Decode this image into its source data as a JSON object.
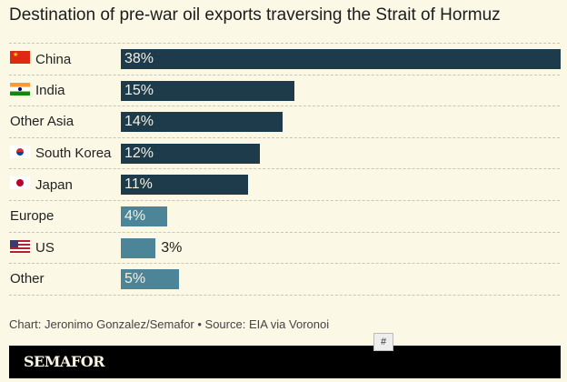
{
  "chart_data": {
    "type": "bar",
    "orientation": "horizontal",
    "title": "Destination of pre-war oil exports traversing the Strait of Hormuz",
    "categories": [
      "China",
      "India",
      "Other Asia",
      "South Korea",
      "Japan",
      "Europe",
      "US",
      "Other"
    ],
    "values": [
      38,
      15,
      14,
      12,
      11,
      4,
      3,
      5
    ],
    "value_labels": [
      "38%",
      "15%",
      "14%",
      "12%",
      "11%",
      "4%",
      "3%",
      "5%"
    ],
    "flags": [
      "china-flag",
      "india-flag",
      null,
      "south-korea-flag",
      "japan-flag",
      null,
      "us-flag",
      null
    ],
    "bar_colors": [
      "#1d3b4b",
      "#1d3b4b",
      "#1d3b4b",
      "#1d3b4b",
      "#1d3b4b",
      "#4b8597",
      "#4b8597",
      "#4b8597"
    ],
    "xlim": [
      0,
      38
    ],
    "xlabel": "",
    "ylabel": ""
  },
  "credit": "Chart: Jeronimo Gonzalez/Semafor • Source: EIA via Voronoi",
  "logo": "SEMAFOR",
  "hash_button": "#"
}
